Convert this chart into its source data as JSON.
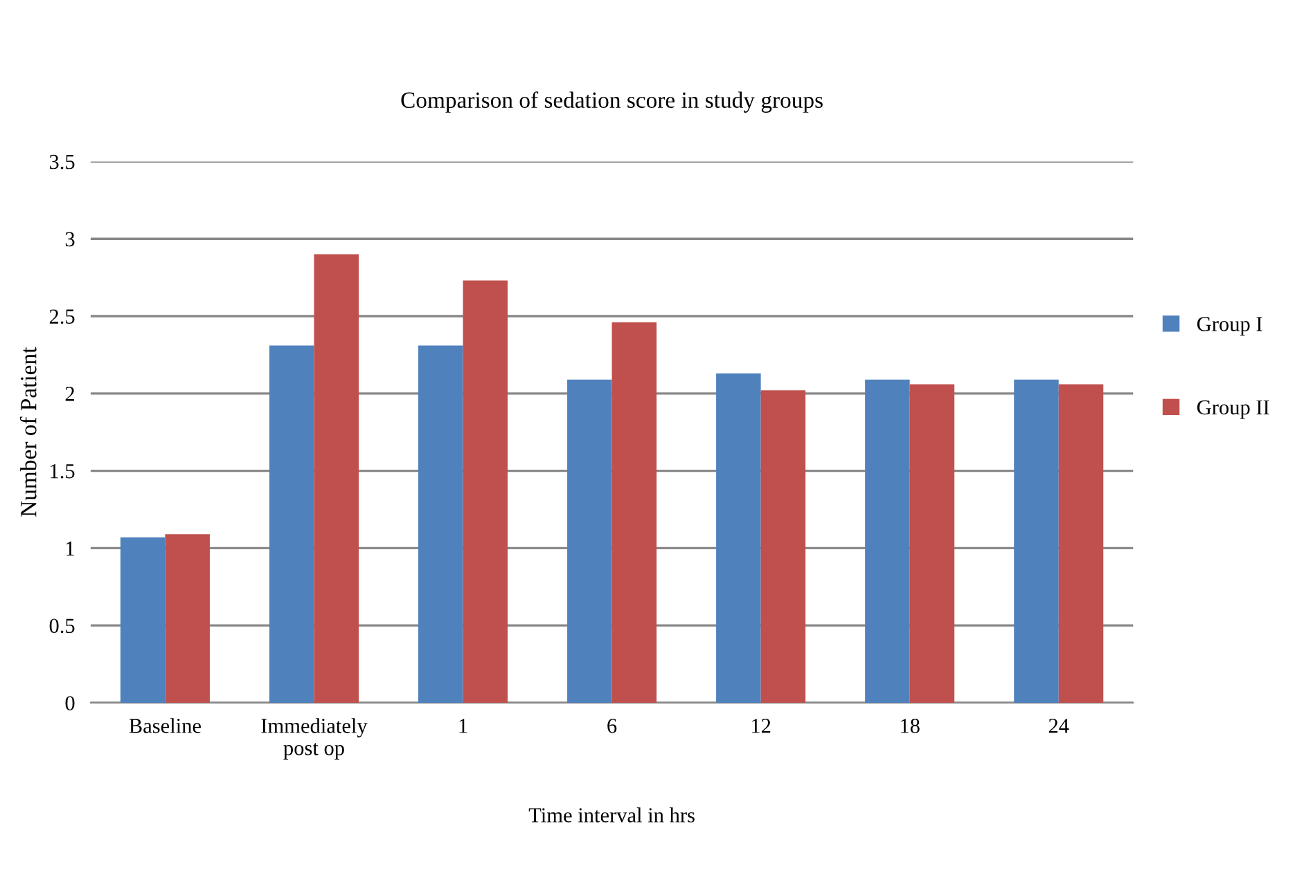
{
  "chart_data": {
    "type": "bar",
    "title": "Comparison of sedation score in study groups",
    "xlabel": "Time interval in hrs",
    "ylabel": "Number of Patient",
    "categories": [
      "Baseline",
      "Immediately\npost op",
      "1",
      "6",
      "12",
      "18",
      "24"
    ],
    "series": [
      {
        "name": "Group I",
        "color": "#4f81bd",
        "values": [
          1.07,
          2.31,
          2.31,
          2.09,
          2.13,
          2.09,
          2.09
        ]
      },
      {
        "name": "Group II",
        "color": "#c0504d",
        "values": [
          1.09,
          2.9,
          2.73,
          2.46,
          2.02,
          2.06,
          2.06
        ]
      }
    ],
    "ylim": [
      0,
      3.5
    ],
    "yticks": [
      0,
      0.5,
      1,
      1.5,
      2,
      2.5,
      3,
      3.5
    ],
    "grid": "y",
    "legend": "right"
  }
}
